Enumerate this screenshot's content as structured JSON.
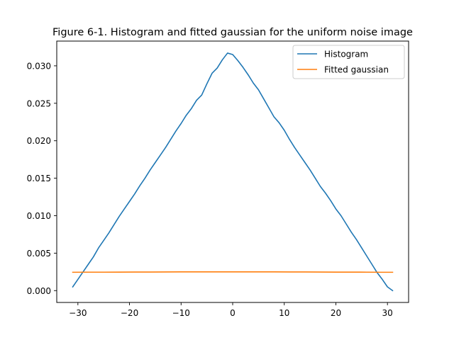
{
  "chart_data": {
    "type": "line",
    "title": "Figure 6-1. Histogram and fitted gaussian for the uniform noise image",
    "xlabel": "",
    "ylabel": "",
    "xlim": [
      -34.1,
      34.1
    ],
    "ylim": [
      -0.00158,
      0.0333
    ],
    "x_ticks": [
      -30,
      -20,
      -10,
      0,
      10,
      20,
      30
    ],
    "x_tick_labels": [
      "−30",
      "−20",
      "−10",
      "0",
      "10",
      "20",
      "30"
    ],
    "y_ticks": [
      0.0,
      0.005,
      0.01,
      0.015,
      0.02,
      0.025,
      0.03
    ],
    "y_tick_labels": [
      "0.000",
      "0.005",
      "0.010",
      "0.015",
      "0.020",
      "0.025",
      "0.030"
    ],
    "grid": false,
    "legend_position": "top-right",
    "series": [
      {
        "name": "Histogram",
        "color": "#1f77b4",
        "x": [
          -31,
          -30,
          -29,
          -28,
          -27,
          -26,
          -25,
          -24,
          -23,
          -22,
          -21,
          -20,
          -19,
          -18,
          -17,
          -16,
          -15,
          -14,
          -13,
          -12,
          -11,
          -10,
          -9,
          -8,
          -7,
          -6,
          -5,
          -4,
          -3,
          -2,
          -1,
          0,
          1,
          2,
          3,
          4,
          5,
          6,
          7,
          8,
          9,
          10,
          11,
          12,
          13,
          14,
          15,
          16,
          17,
          18,
          19,
          20,
          21,
          22,
          23,
          24,
          25,
          26,
          27,
          28,
          29,
          30,
          31
        ],
        "values": [
          0.0005,
          0.0015,
          0.0025,
          0.0035,
          0.0045,
          0.0057,
          0.0067,
          0.0077,
          0.0088,
          0.0099,
          0.0109,
          0.0119,
          0.0129,
          0.014,
          0.015,
          0.0161,
          0.0171,
          0.0181,
          0.0191,
          0.0202,
          0.0213,
          0.0223,
          0.0234,
          0.0243,
          0.0254,
          0.0261,
          0.0276,
          0.029,
          0.0297,
          0.0308,
          0.0317,
          0.0315,
          0.0307,
          0.0298,
          0.0288,
          0.0277,
          0.0268,
          0.0256,
          0.0244,
          0.0232,
          0.0224,
          0.0214,
          0.0202,
          0.0191,
          0.0181,
          0.0171,
          0.0161,
          0.015,
          0.0139,
          0.013,
          0.012,
          0.0109,
          0.01,
          0.0089,
          0.0078,
          0.0068,
          0.0057,
          0.0046,
          0.0035,
          0.0024,
          0.0015,
          0.0005,
          0.0
        ]
      },
      {
        "name": "Fitted gaussian",
        "color": "#ff7f0e",
        "x": [
          -31,
          -28,
          -25,
          -22,
          -19,
          -16,
          -13,
          -10,
          -7,
          -4,
          -1,
          0,
          2,
          5,
          8,
          11,
          14,
          17,
          20,
          23,
          26,
          29,
          31
        ],
        "values": [
          0.00245,
          0.00246,
          0.00246,
          0.00247,
          0.00248,
          0.00248,
          0.00249,
          0.0025,
          0.0025,
          0.0025,
          0.0025,
          0.0025,
          0.0025,
          0.0025,
          0.0025,
          0.00249,
          0.00249,
          0.00248,
          0.00247,
          0.00247,
          0.00246,
          0.00245,
          0.00245
        ]
      }
    ]
  }
}
